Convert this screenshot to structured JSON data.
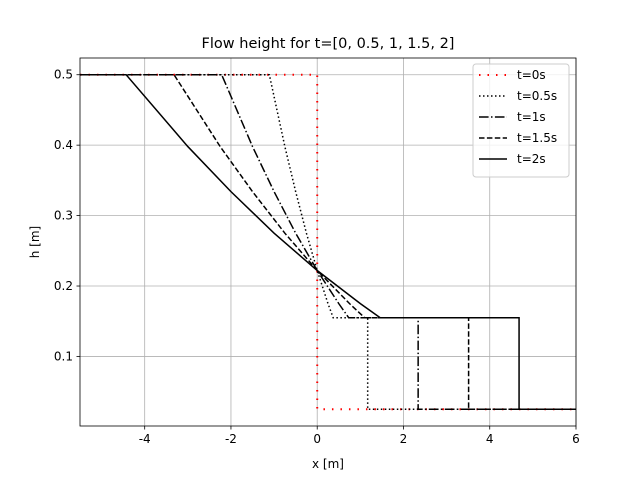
{
  "chart_data": {
    "type": "line",
    "title": "Flow height for t=[0, 0.5, 1, 1.5, 2]",
    "xlabel": "x [m]",
    "ylabel": "h [m]",
    "xlim": [
      -5.5,
      6
    ],
    "ylim": [
      0.00125,
      0.52375
    ],
    "xticks": [
      -4,
      -2,
      0,
      2,
      4,
      6
    ],
    "yticks": [
      0.1,
      0.2,
      0.3,
      0.4,
      0.5
    ],
    "grid": true,
    "legend": "upper right",
    "series": [
      {
        "name": "t=0s",
        "color": "#ff0000",
        "linestyle": "dotted-sparse",
        "x": [
          -5.5,
          0,
          0,
          6
        ],
        "values": [
          0.5,
          0.5,
          0.025,
          0.025
        ]
      },
      {
        "name": "t=0.5s",
        "color": "#000000",
        "linestyle": "dotted",
        "x": [
          -5.5,
          -1.11,
          -0.75,
          -0.5,
          -0.25,
          0,
          0.25,
          0.37,
          1.17,
          1.17,
          6
        ],
        "values": [
          0.5,
          0.5,
          0.398,
          0.334,
          0.275,
          0.222,
          0.175,
          0.155,
          0.155,
          0.025,
          0.025
        ]
      },
      {
        "name": "t=1s",
        "color": "#000000",
        "linestyle": "dashdot",
        "x": [
          -5.5,
          -2.215,
          -1.5,
          -1,
          -0.5,
          0,
          0.5,
          0.73,
          2.34,
          2.34,
          6
        ],
        "values": [
          0.5,
          0.5,
          0.398,
          0.334,
          0.275,
          0.222,
          0.175,
          0.155,
          0.155,
          0.025,
          0.025
        ]
      },
      {
        "name": "t=1.5s",
        "color": "#000000",
        "linestyle": "dashed",
        "x": [
          -5.5,
          -3.32,
          -2.25,
          -1.5,
          -0.75,
          0,
          0.75,
          1.1,
          3.51,
          3.51,
          6
        ],
        "values": [
          0.5,
          0.5,
          0.398,
          0.334,
          0.275,
          0.222,
          0.175,
          0.155,
          0.155,
          0.025,
          0.025
        ]
      },
      {
        "name": "t=2s",
        "color": "#000000",
        "linestyle": "solid",
        "x": [
          -5.5,
          -4.43,
          -3,
          -2,
          -1,
          0,
          1,
          1.46,
          4.68,
          4.68,
          6
        ],
        "values": [
          0.5,
          0.5,
          0.398,
          0.334,
          0.275,
          0.222,
          0.175,
          0.155,
          0.155,
          0.025,
          0.025
        ]
      }
    ]
  }
}
